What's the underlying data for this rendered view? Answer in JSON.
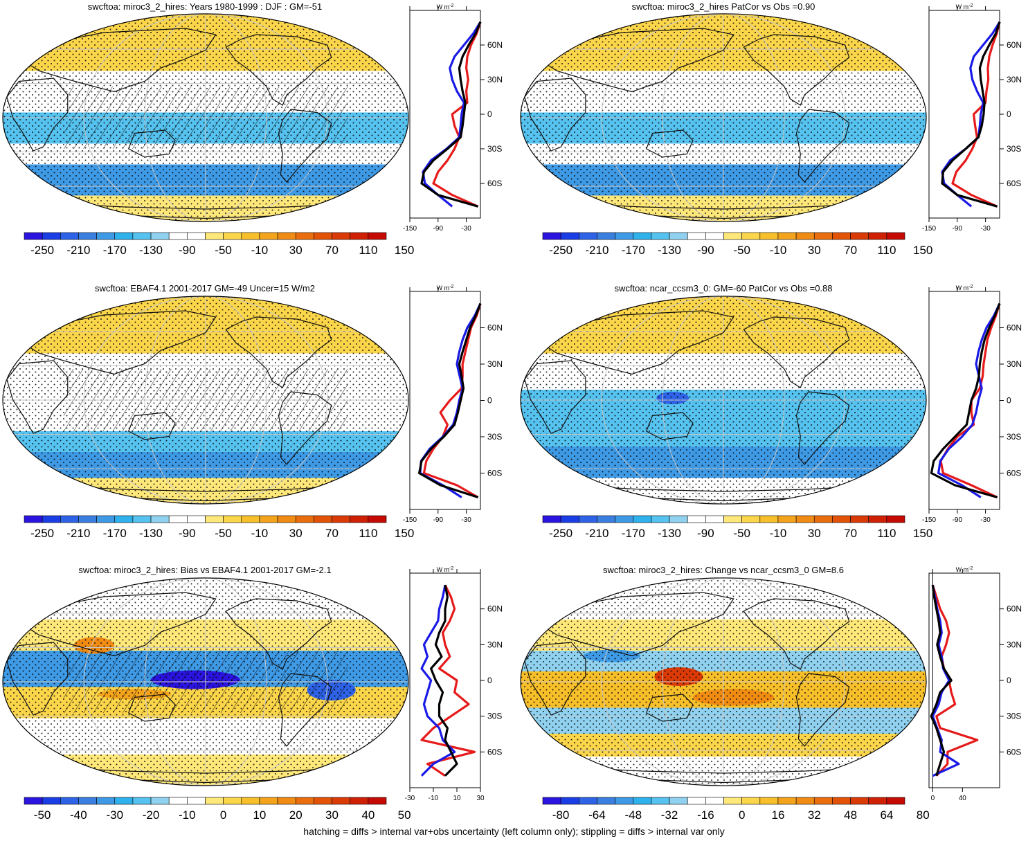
{
  "footnote": "hatching = diffs > internal var+obs uncertainty (left column only); stippling = diffs > internal var only",
  "colors": {
    "land": "#222222",
    "model": "#000000",
    "obs": "#1a1ae6",
    "ref": "#e61a1a"
  },
  "chart_data": [
    {
      "type": "heatmap",
      "id": "p1",
      "title": "swcftoa: miroc3_2_hires: Years 1980-1999 : DJF : GM=-51",
      "colorbar": {
        "ticks": [
          "-250",
          "-210",
          "-170",
          "-130",
          "-90",
          "-50",
          "-10",
          "30",
          "70",
          "110",
          "150"
        ]
      },
      "profile": {
        "unit": "W m",
        "unit_sup": "-2",
        "xticks": [
          "-150",
          "-90",
          "-30"
        ],
        "yticks": [
          "60N",
          "30N",
          "0",
          "30S",
          "60S"
        ],
        "series": [
          {
            "name": "black",
            "lat": [
              80,
              70,
              60,
              50,
              40,
              30,
              20,
              10,
              0,
              -10,
              -20,
              -30,
              -40,
              -50,
              -60,
              -70,
              -80
            ],
            "values": [
              0,
              -10,
              -25,
              -38,
              -45,
              -42,
              -38,
              -32,
              -35,
              -38,
              -42,
              -70,
              -100,
              -120,
              -125,
              -90,
              -5
            ]
          },
          {
            "name": "blue",
            "lat": [
              80,
              70,
              60,
              50,
              40,
              30,
              20,
              10,
              0,
              -10,
              -20,
              -30,
              -40,
              -50,
              -60,
              -70,
              -80
            ],
            "values": [
              0,
              -15,
              -35,
              -55,
              -65,
              -60,
              -50,
              -35,
              -40,
              -42,
              -45,
              -72,
              -105,
              -122,
              -118,
              -90,
              -60
            ]
          },
          {
            "name": "red",
            "lat": [
              80,
              70,
              60,
              50,
              40,
              30,
              20,
              10,
              0,
              -10,
              -20,
              -30,
              -40,
              -50,
              -60,
              -70,
              -80
            ],
            "values": [
              0,
              -8,
              -20,
              -28,
              -30,
              -26,
              -30,
              -28,
              -60,
              -55,
              -45,
              -55,
              -70,
              -90,
              -100,
              -60,
              -5
            ]
          }
        ]
      }
    },
    {
      "type": "heatmap",
      "id": "p2",
      "title": "swcftoa: miroc3_2_hires PatCor vs Obs =0.90",
      "colorbar": {
        "ticks": [
          "-250",
          "-210",
          "-170",
          "-130",
          "-90",
          "-50",
          "-10",
          "30",
          "70",
          "110",
          "150"
        ]
      },
      "profile": {
        "unit": "W m",
        "unit_sup": "-2",
        "xticks": [
          "-150",
          "-90",
          "-30"
        ],
        "yticks": [
          "60N",
          "30N",
          "0",
          "30S",
          "60S"
        ],
        "series": [
          {
            "name": "black",
            "lat": [
              80,
              70,
              60,
              50,
              40,
              30,
              20,
              10,
              0,
              -10,
              -20,
              -30,
              -40,
              -50,
              -60,
              -70,
              -80
            ],
            "values": [
              0,
              -8,
              -22,
              -35,
              -42,
              -40,
              -36,
              -32,
              -34,
              -38,
              -45,
              -72,
              -100,
              -120,
              -122,
              -90,
              -5
            ]
          },
          {
            "name": "blue",
            "lat": [
              80,
              70,
              60,
              50,
              40,
              30,
              20,
              10,
              0,
              -10,
              -20,
              -30,
              -40,
              -50,
              -60,
              -70,
              -80
            ],
            "values": [
              0,
              -15,
              -35,
              -55,
              -62,
              -58,
              -48,
              -35,
              -40,
              -42,
              -45,
              -72,
              -105,
              -122,
              -118,
              -90,
              -60
            ]
          },
          {
            "name": "red",
            "lat": [
              80,
              70,
              60,
              50,
              40,
              30,
              20,
              10,
              0,
              -10,
              -20,
              -30,
              -40,
              -50,
              -60,
              -70,
              -80
            ],
            "values": [
              0,
              -6,
              -15,
              -22,
              -25,
              -24,
              -28,
              -30,
              -55,
              -52,
              -48,
              -58,
              -72,
              -92,
              -100,
              -60,
              -5
            ]
          }
        ]
      }
    },
    {
      "type": "heatmap",
      "id": "p3",
      "title": "swcftoa: EBAF4.1 2001-2017 GM=-49 Uncer=15 W/m2",
      "colorbar": {
        "ticks": [
          "-250",
          "-210",
          "-170",
          "-130",
          "-90",
          "-50",
          "-10",
          "30",
          "70",
          "110",
          "150"
        ]
      },
      "profile": {
        "unit": "W m",
        "unit_sup": "-2",
        "xticks": [
          "-150",
          "-90",
          "-30"
        ],
        "yticks": [
          "60N",
          "30N",
          "0",
          "30S",
          "60S"
        ],
        "series": [
          {
            "name": "black",
            "lat": [
              80,
              70,
              60,
              50,
              40,
              30,
              20,
              10,
              0,
              -10,
              -20,
              -30,
              -40,
              -50,
              -60,
              -70,
              -80
            ],
            "values": [
              0,
              -10,
              -22,
              -30,
              -38,
              -45,
              -40,
              -36,
              -42,
              -48,
              -55,
              -78,
              -105,
              -125,
              -130,
              -85,
              -5
            ]
          },
          {
            "name": "blue",
            "lat": [
              80,
              70,
              60,
              50,
              40,
              30,
              20,
              10,
              0,
              -10,
              -20,
              -30,
              -40,
              -50,
              -60,
              -70,
              -80
            ],
            "values": [
              0,
              -12,
              -28,
              -38,
              -45,
              -50,
              -44,
              -38,
              -45,
              -50,
              -58,
              -80,
              -108,
              -126,
              -128,
              -80,
              -40
            ]
          },
          {
            "name": "red",
            "lat": [
              80,
              70,
              60,
              50,
              40,
              30,
              20,
              10,
              0,
              -10,
              -20,
              -30,
              -40,
              -50,
              -60,
              -70,
              -80
            ],
            "values": [
              0,
              -8,
              -20,
              -26,
              -32,
              -38,
              -38,
              -40,
              -65,
              -85,
              -70,
              -80,
              -100,
              -115,
              -120,
              -50,
              -5
            ]
          }
        ]
      }
    },
    {
      "type": "heatmap",
      "id": "p4",
      "title": "swcftoa: ncar_ccsm3_0: GM=-60 PatCor vs Obs =0.88",
      "colorbar": {
        "ticks": [
          "-250",
          "-210",
          "-170",
          "-130",
          "-90",
          "-50",
          "-10",
          "30",
          "70",
          "110",
          "150"
        ]
      },
      "profile": {
        "unit": "W m",
        "unit_sup": "-2",
        "xticks": [
          "-150",
          "-90",
          "-30"
        ],
        "yticks": [
          "60N",
          "30N",
          "0",
          "30S",
          "60S"
        ],
        "series": [
          {
            "name": "black",
            "lat": [
              80,
              70,
              60,
              50,
              40,
              30,
              20,
              10,
              0,
              -10,
              -20,
              -30,
              -40,
              -50,
              -60,
              -70,
              -80
            ],
            "values": [
              0,
              -10,
              -22,
              -32,
              -38,
              -42,
              -44,
              -50,
              -60,
              -65,
              -70,
              -95,
              -120,
              -140,
              -145,
              -95,
              -5
            ]
          },
          {
            "name": "blue",
            "lat": [
              80,
              70,
              60,
              50,
              40,
              30,
              20,
              10,
              0,
              -10,
              -20,
              -30,
              -40,
              -50,
              -60,
              -70,
              -80
            ],
            "values": [
              0,
              -12,
              -28,
              -38,
              -45,
              -50,
              -44,
              -38,
              -45,
              -50,
              -58,
              -80,
              -108,
              -126,
              -130,
              -80,
              -40
            ]
          },
          {
            "name": "red",
            "lat": [
              80,
              70,
              60,
              50,
              40,
              30,
              20,
              10,
              0,
              -10,
              -20,
              -30,
              -40,
              -50,
              -60,
              -70,
              -80
            ],
            "values": [
              0,
              -8,
              -18,
              -26,
              -30,
              -34,
              -36,
              -42,
              -60,
              -60,
              -55,
              -90,
              -110,
              -125,
              -120,
              -60,
              -5
            ]
          }
        ]
      }
    },
    {
      "type": "heatmap",
      "id": "p5",
      "title": "swcftoa: miroc3_2_hires: Bias vs EBAF4.1 2001-2017 GM=-2.1",
      "colorbar": {
        "ticks": [
          "-50",
          "-40",
          "-30",
          "-20",
          "-10",
          "0",
          "10",
          "20",
          "30",
          "40",
          "50"
        ]
      },
      "profile": {
        "unit": "W m",
        "unit_sup": "-2",
        "xticks": [
          "-30",
          "-10",
          "10",
          "30"
        ],
        "yticks": [
          "60N",
          "30N",
          "0",
          "30S",
          "60S"
        ],
        "series": [
          {
            "name": "black",
            "lat": [
              80,
              70,
              60,
              50,
              40,
              30,
              20,
              10,
              0,
              -10,
              -20,
              -30,
              -40,
              -50,
              -60,
              -70,
              -80
            ],
            "values": [
              0,
              2,
              0,
              0,
              -5,
              -8,
              -3,
              -12,
              -8,
              -2,
              -5,
              -5,
              2,
              0,
              5,
              10,
              0
            ]
          },
          {
            "name": "blue",
            "lat": [
              80,
              70,
              60,
              50,
              40,
              30,
              20,
              10,
              0,
              -10,
              -20,
              -30,
              -40,
              -50,
              -60,
              -70,
              -80
            ],
            "values": [
              0,
              -2,
              -5,
              -6,
              -12,
              -18,
              -15,
              -20,
              -12,
              -15,
              -18,
              -15,
              -5,
              -2,
              8,
              -10,
              -20
            ]
          },
          {
            "name": "red",
            "lat": [
              80,
              70,
              60,
              50,
              40,
              30,
              20,
              10,
              0,
              -10,
              -20,
              -30,
              -40,
              -50,
              -60,
              -70,
              -80
            ],
            "values": [
              0,
              5,
              8,
              4,
              -2,
              0,
              4,
              -5,
              10,
              8,
              20,
              5,
              -10,
              -20,
              25,
              -15,
              0
            ]
          }
        ]
      }
    },
    {
      "type": "heatmap",
      "id": "p6",
      "title": "swcftoa: miroc3_2_hires: Change vs ncar_ccsm3_0 GM=8.6",
      "colorbar": {
        "ticks": [
          "-80",
          "-64",
          "-48",
          "-32",
          "-16",
          "0",
          "16",
          "32",
          "48",
          "64",
          "80"
        ]
      },
      "profile": {
        "unit": "W m",
        "unit_sup": "-2",
        "xticks": [
          "0",
          "40"
        ],
        "yticks": [
          "60N",
          "30N",
          "0",
          "30S",
          "60S"
        ],
        "series": [
          {
            "name": "black",
            "lat": [
              80,
              70,
              60,
              50,
              40,
              30,
              20,
              10,
              0,
              -10,
              -20,
              -30,
              -40,
              -50,
              -60,
              -70,
              -80
            ],
            "values": [
              0,
              2,
              5,
              8,
              10,
              6,
              10,
              15,
              25,
              10,
              5,
              -2,
              5,
              10,
              15,
              10,
              5
            ]
          },
          {
            "name": "blue",
            "lat": [
              80,
              70,
              60,
              50,
              40,
              30,
              20,
              10,
              0,
              -10,
              -20,
              -30,
              -40,
              -50,
              -60,
              -70,
              -80
            ],
            "values": [
              0,
              3,
              6,
              10,
              12,
              8,
              12,
              14,
              22,
              12,
              8,
              0,
              6,
              12,
              10,
              35,
              0
            ]
          },
          {
            "name": "red",
            "lat": [
              80,
              70,
              60,
              50,
              40,
              30,
              20,
              10,
              0,
              -10,
              -20,
              -30,
              -40,
              -50,
              -60,
              -70,
              -80
            ],
            "values": [
              0,
              5,
              10,
              18,
              22,
              18,
              12,
              15,
              22,
              25,
              30,
              5,
              10,
              60,
              20,
              20,
              5
            ]
          }
        ]
      }
    }
  ]
}
